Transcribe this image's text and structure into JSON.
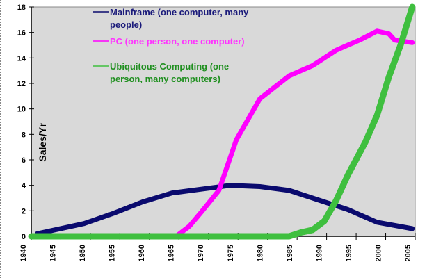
{
  "chart_data": {
    "type": "line",
    "title": "",
    "xlabel": "",
    "ylabel": "Sales/Yr",
    "xlim": [
      1941,
      2006.5
    ],
    "ylim": [
      0,
      18
    ],
    "yticks": [
      0,
      2,
      4,
      6,
      8,
      10,
      12,
      14,
      16,
      18
    ],
    "xticks": [
      1940,
      1945,
      1950,
      1955,
      1960,
      1965,
      1970,
      1975,
      1980,
      1985,
      1990,
      1995,
      2000,
      2005
    ],
    "grid": false,
    "legend_placement": "top-center",
    "plot_background": "#d9d9d9",
    "series": [
      {
        "name": "Mainframe (one computer, many people)",
        "legend_lines": [
          "Mainframe (one computer, many",
          "people)"
        ],
        "color": "#0a0a6e",
        "points": [
          [
            1942,
            0.2
          ],
          [
            1945,
            0.5
          ],
          [
            1950,
            1.0
          ],
          [
            1955,
            1.8
          ],
          [
            1960,
            2.7
          ],
          [
            1965,
            3.4
          ],
          [
            1970,
            3.7
          ],
          [
            1975,
            4.0
          ],
          [
            1980,
            3.9
          ],
          [
            1985,
            3.6
          ],
          [
            1989,
            3.0
          ],
          [
            1995,
            2.1
          ],
          [
            2000,
            1.1
          ],
          [
            2006,
            0.6
          ]
        ]
      },
      {
        "name": "PC (one person, one computer)",
        "legend_lines": [
          "PC (one person, one computer)"
        ],
        "color": "#ff00ff",
        "points": [
          [
            1966,
            0.1
          ],
          [
            1968,
            0.8
          ],
          [
            1970,
            1.9
          ],
          [
            1973,
            3.6
          ],
          [
            1976,
            7.6
          ],
          [
            1980,
            10.8
          ],
          [
            1985,
            12.6
          ],
          [
            1989,
            13.4
          ],
          [
            1993,
            14.6
          ],
          [
            1997,
            15.4
          ],
          [
            2000,
            16.1
          ],
          [
            2002,
            15.9
          ],
          [
            2003,
            15.4
          ],
          [
            2006,
            15.2
          ]
        ]
      },
      {
        "name": "Ubiquitous Computing (one person, many computers)",
        "legend_lines": [
          "Ubiquitous Computing (one",
          "person, many computers)"
        ],
        "color": "#3fbf3f",
        "points": [
          [
            1941,
            0
          ],
          [
            1985,
            0
          ],
          [
            1987,
            0.3
          ],
          [
            1989,
            0.5
          ],
          [
            1991,
            1.2
          ],
          [
            1993,
            2.8
          ],
          [
            1995,
            4.8
          ],
          [
            1998,
            7.4
          ],
          [
            2000,
            9.5
          ],
          [
            2002,
            12.5
          ],
          [
            2004,
            15
          ],
          [
            2006,
            18
          ]
        ]
      }
    ]
  }
}
